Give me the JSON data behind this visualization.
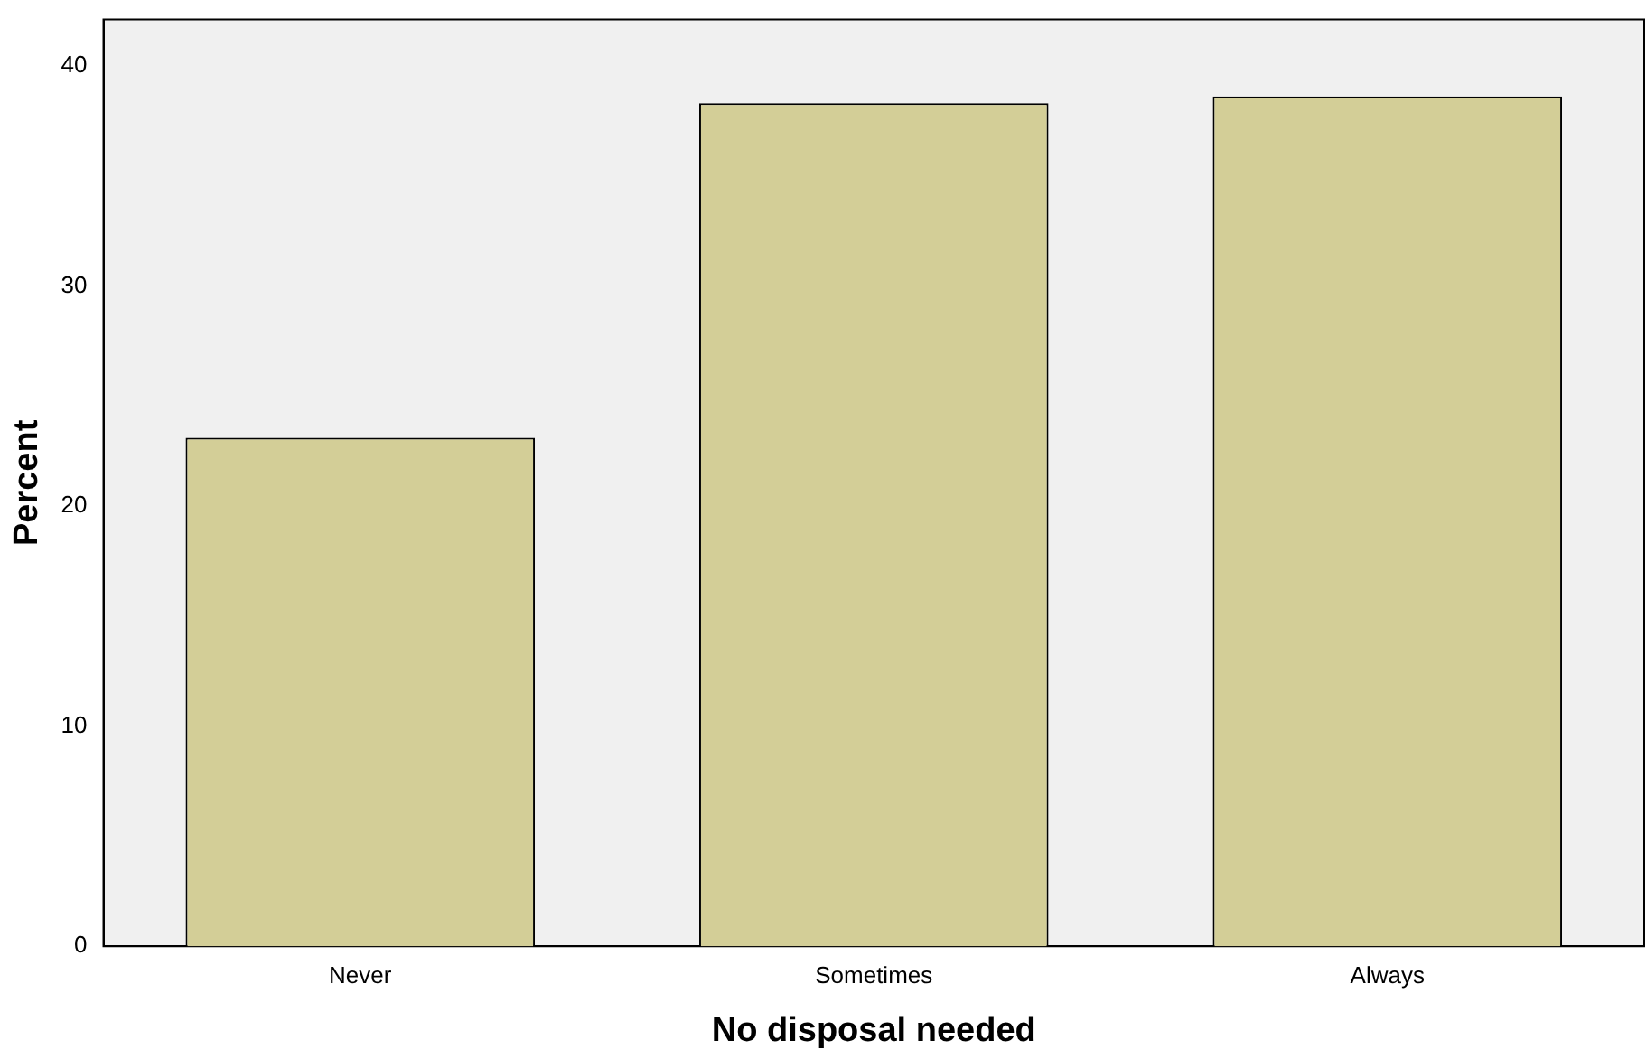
{
  "chart_data": {
    "type": "bar",
    "xlabel": "No disposal needed",
    "ylabel": "Percent",
    "categories": [
      "Never",
      "Sometimes",
      "Always"
    ],
    "values": [
      23.1,
      38.3,
      38.6
    ],
    "color": "#d3ce97",
    "ylim": [
      0,
      42.1
    ],
    "yticks": [
      0,
      10,
      20,
      30,
      40
    ],
    "grid": false,
    "legend": false
  }
}
